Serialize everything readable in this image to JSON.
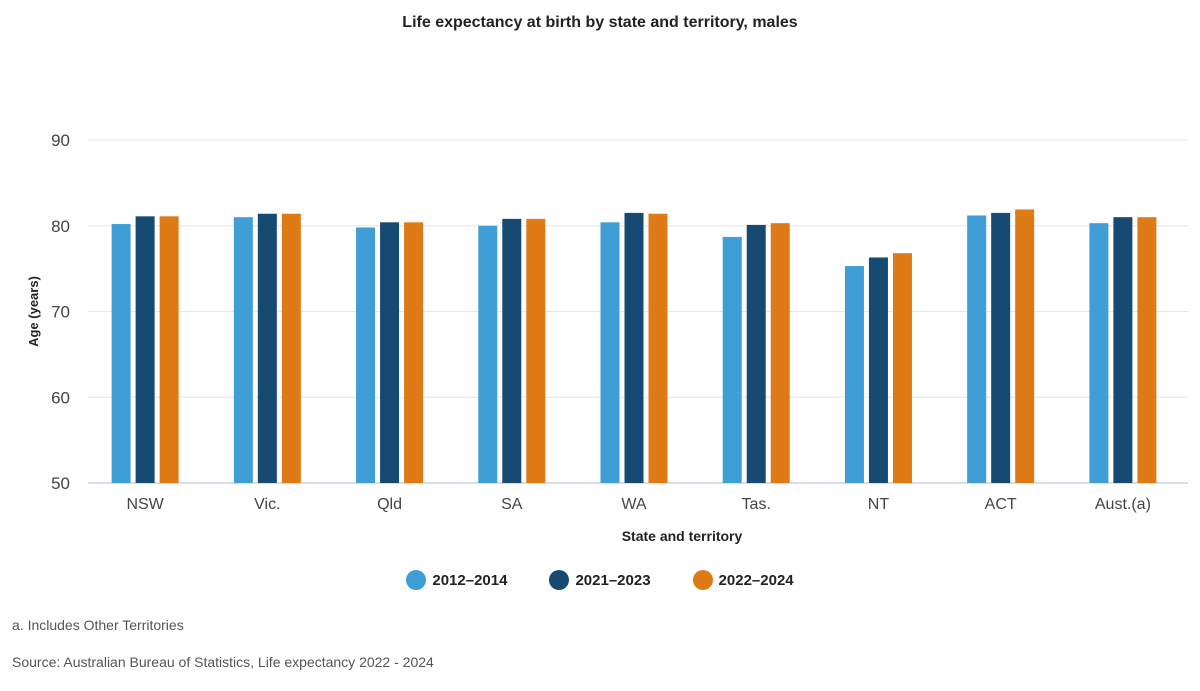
{
  "chart_data": {
    "type": "bar",
    "title": "Life expectancy at birth by state and territory, males",
    "xlabel": "State and territory",
    "ylabel": "Age (years)",
    "ylim": [
      50,
      90
    ],
    "yticks": [
      50,
      60,
      70,
      80,
      90
    ],
    "grid": true,
    "legend_position": "bottom",
    "categories": [
      "NSW",
      "Vic.",
      "Qld",
      "SA",
      "WA",
      "Tas.",
      "NT",
      "ACT",
      "Aust.(a)"
    ],
    "series": [
      {
        "name": "2012–2014",
        "color": "#3f9ed5",
        "values": [
          80.2,
          81.0,
          79.8,
          80.0,
          80.4,
          78.7,
          75.3,
          81.2,
          80.3
        ]
      },
      {
        "name": "2021–2023",
        "color": "#164a72",
        "values": [
          81.1,
          81.4,
          80.4,
          80.8,
          81.5,
          80.1,
          76.3,
          81.5,
          81.0
        ]
      },
      {
        "name": "2022–2024",
        "color": "#df7b17",
        "values": [
          81.1,
          81.4,
          80.4,
          80.8,
          81.4,
          80.3,
          76.8,
          81.9,
          81.0
        ]
      }
    ]
  },
  "footnotes": {
    "note": "a. Includes Other Territories",
    "source": "Source: Australian Bureau of Statistics, Life expectancy 2022 - 2024"
  }
}
